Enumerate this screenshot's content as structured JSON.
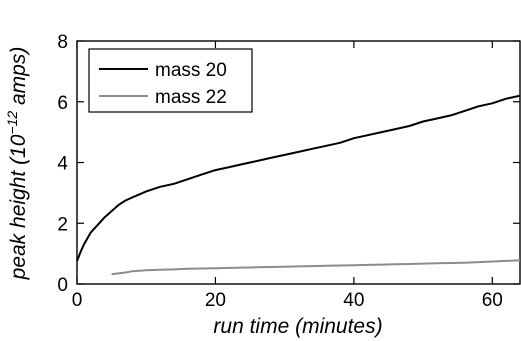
{
  "chart_data": {
    "type": "line",
    "title": "",
    "xlabel": "run time (minutes)",
    "ylabel_main": "peak height (10",
    "ylabel_exp": "−12",
    "ylabel_unit": " amps)",
    "xlim": [
      0,
      64
    ],
    "ylim": [
      0,
      8
    ],
    "xticks": [
      0,
      20,
      40,
      60
    ],
    "yticks": [
      0,
      2,
      4,
      6,
      8
    ],
    "grid": false,
    "legend_position": "top-left",
    "series": [
      {
        "name": "mass 20",
        "color": "#000000",
        "x": [
          0,
          0.5,
          1,
          1.5,
          2,
          3,
          4,
          5,
          6,
          7,
          8,
          9,
          10,
          12,
          14,
          16,
          18,
          20,
          22,
          24,
          26,
          28,
          30,
          32,
          34,
          36,
          38,
          40,
          42,
          44,
          46,
          48,
          50,
          52,
          54,
          56,
          58,
          60,
          62,
          64
        ],
        "values": [
          0.75,
          1.05,
          1.3,
          1.5,
          1.7,
          1.95,
          2.2,
          2.4,
          2.6,
          2.75,
          2.85,
          2.95,
          3.05,
          3.2,
          3.3,
          3.45,
          3.6,
          3.75,
          3.85,
          3.95,
          4.05,
          4.15,
          4.25,
          4.35,
          4.45,
          4.55,
          4.65,
          4.8,
          4.9,
          5.0,
          5.1,
          5.2,
          5.35,
          5.45,
          5.55,
          5.7,
          5.85,
          5.95,
          6.1,
          6.2
        ]
      },
      {
        "name": "mass 22",
        "color": "#8c8c8c",
        "x": [
          5,
          6,
          7,
          8,
          10,
          12,
          14,
          16,
          18,
          20,
          22,
          24,
          26,
          28,
          30,
          32,
          34,
          36,
          38,
          40,
          42,
          44,
          46,
          48,
          50,
          52,
          54,
          56,
          58,
          60,
          62,
          64
        ],
        "values": [
          0.32,
          0.35,
          0.38,
          0.42,
          0.45,
          0.47,
          0.48,
          0.5,
          0.51,
          0.52,
          0.53,
          0.54,
          0.55,
          0.56,
          0.57,
          0.58,
          0.59,
          0.6,
          0.61,
          0.62,
          0.63,
          0.64,
          0.65,
          0.66,
          0.67,
          0.68,
          0.69,
          0.7,
          0.72,
          0.74,
          0.76,
          0.78
        ]
      }
    ]
  }
}
